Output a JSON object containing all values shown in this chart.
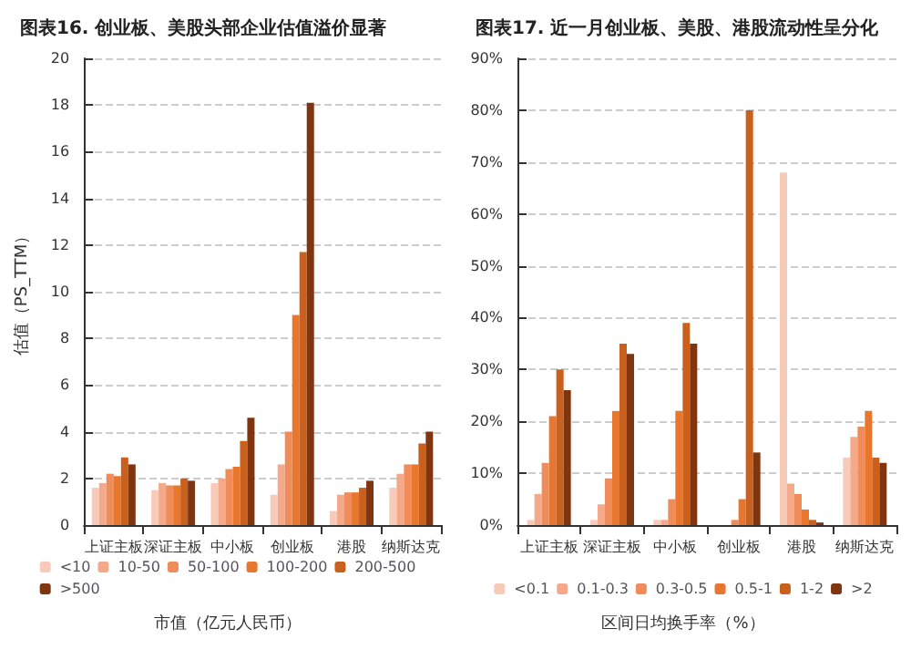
{
  "chart_data": [
    {
      "type": "bar",
      "title": "图表16. 创业板、美股头部企业估值溢价显著",
      "ylabel": "估值（PS_TTM）",
      "xlabel": "市值（亿元人民币）",
      "categories": [
        "上证主板",
        "深证主板",
        "中小板",
        "创业板",
        "港股",
        "纳斯达克"
      ],
      "series": [
        {
          "name": "<10",
          "color": "#f8cbb8",
          "values": [
            1.6,
            1.5,
            1.8,
            1.3,
            0.6,
            1.6
          ]
        },
        {
          "name": "10-50",
          "color": "#f4a98a",
          "values": [
            1.8,
            1.8,
            2.0,
            2.6,
            1.3,
            2.2
          ]
        },
        {
          "name": "50-100",
          "color": "#ef8c5a",
          "values": [
            2.2,
            1.7,
            2.4,
            4.0,
            1.4,
            2.6
          ]
        },
        {
          "name": "100-200",
          "color": "#e8762c",
          "values": [
            2.1,
            1.7,
            2.5,
            9.0,
            1.4,
            2.6
          ]
        },
        {
          "name": "200-500",
          "color": "#c9601d",
          "values": [
            2.9,
            2.0,
            3.6,
            11.7,
            1.6,
            3.5
          ]
        },
        {
          "name": ">500",
          "color": "#7f3510",
          "values": [
            2.6,
            1.9,
            4.6,
            18.1,
            1.9,
            4.0
          ]
        }
      ],
      "ylim": [
        0,
        20
      ],
      "yticks": [
        0,
        2,
        4,
        6,
        8,
        10,
        12,
        14,
        16,
        18,
        20
      ],
      "grid": "y",
      "legend": "bottom"
    },
    {
      "type": "bar",
      "title": "图表17. 近一月创业板、美股、港股流动性呈分化",
      "xlabel": "区间日均换手率（%）",
      "categories": [
        "上证主板",
        "深证主板",
        "中小板",
        "创业板",
        "港股",
        "纳斯达克"
      ],
      "series": [
        {
          "name": "<0.1",
          "color": "#f8cbb8",
          "values": [
            1,
            1,
            1,
            0,
            68,
            13
          ]
        },
        {
          "name": "0.1-0.3",
          "color": "#f4a98a",
          "values": [
            6,
            4,
            1,
            0,
            8,
            17
          ]
        },
        {
          "name": "0.3-0.5",
          "color": "#ef8c5a",
          "values": [
            12,
            9,
            5,
            1,
            6,
            19
          ]
        },
        {
          "name": "0.5-1",
          "color": "#e8762c",
          "values": [
            21,
            22,
            22,
            5,
            3,
            22
          ]
        },
        {
          "name": "1-2",
          "color": "#c9601d",
          "values": [
            30,
            35,
            39,
            80,
            1,
            13
          ]
        },
        {
          "name": ">2",
          "color": "#7f3510",
          "values": [
            26,
            33,
            35,
            14,
            0.5,
            12
          ]
        }
      ],
      "ylim": [
        0,
        90
      ],
      "yticks": [
        {
          "value": 0,
          "label": "0%"
        },
        {
          "value": 10,
          "label": "10%"
        },
        {
          "value": 20,
          "label": "20%"
        },
        {
          "value": 30,
          "label": "30%"
        },
        {
          "value": 40,
          "label": "40%"
        },
        {
          "value": 50,
          "label": "50%"
        },
        {
          "value": 60,
          "label": "60%"
        },
        {
          "value": 70,
          "label": "70%"
        },
        {
          "value": 80,
          "label": "80%"
        },
        {
          "value": 90,
          "label": "90%"
        }
      ],
      "grid": "y",
      "legend": "bottom"
    }
  ]
}
